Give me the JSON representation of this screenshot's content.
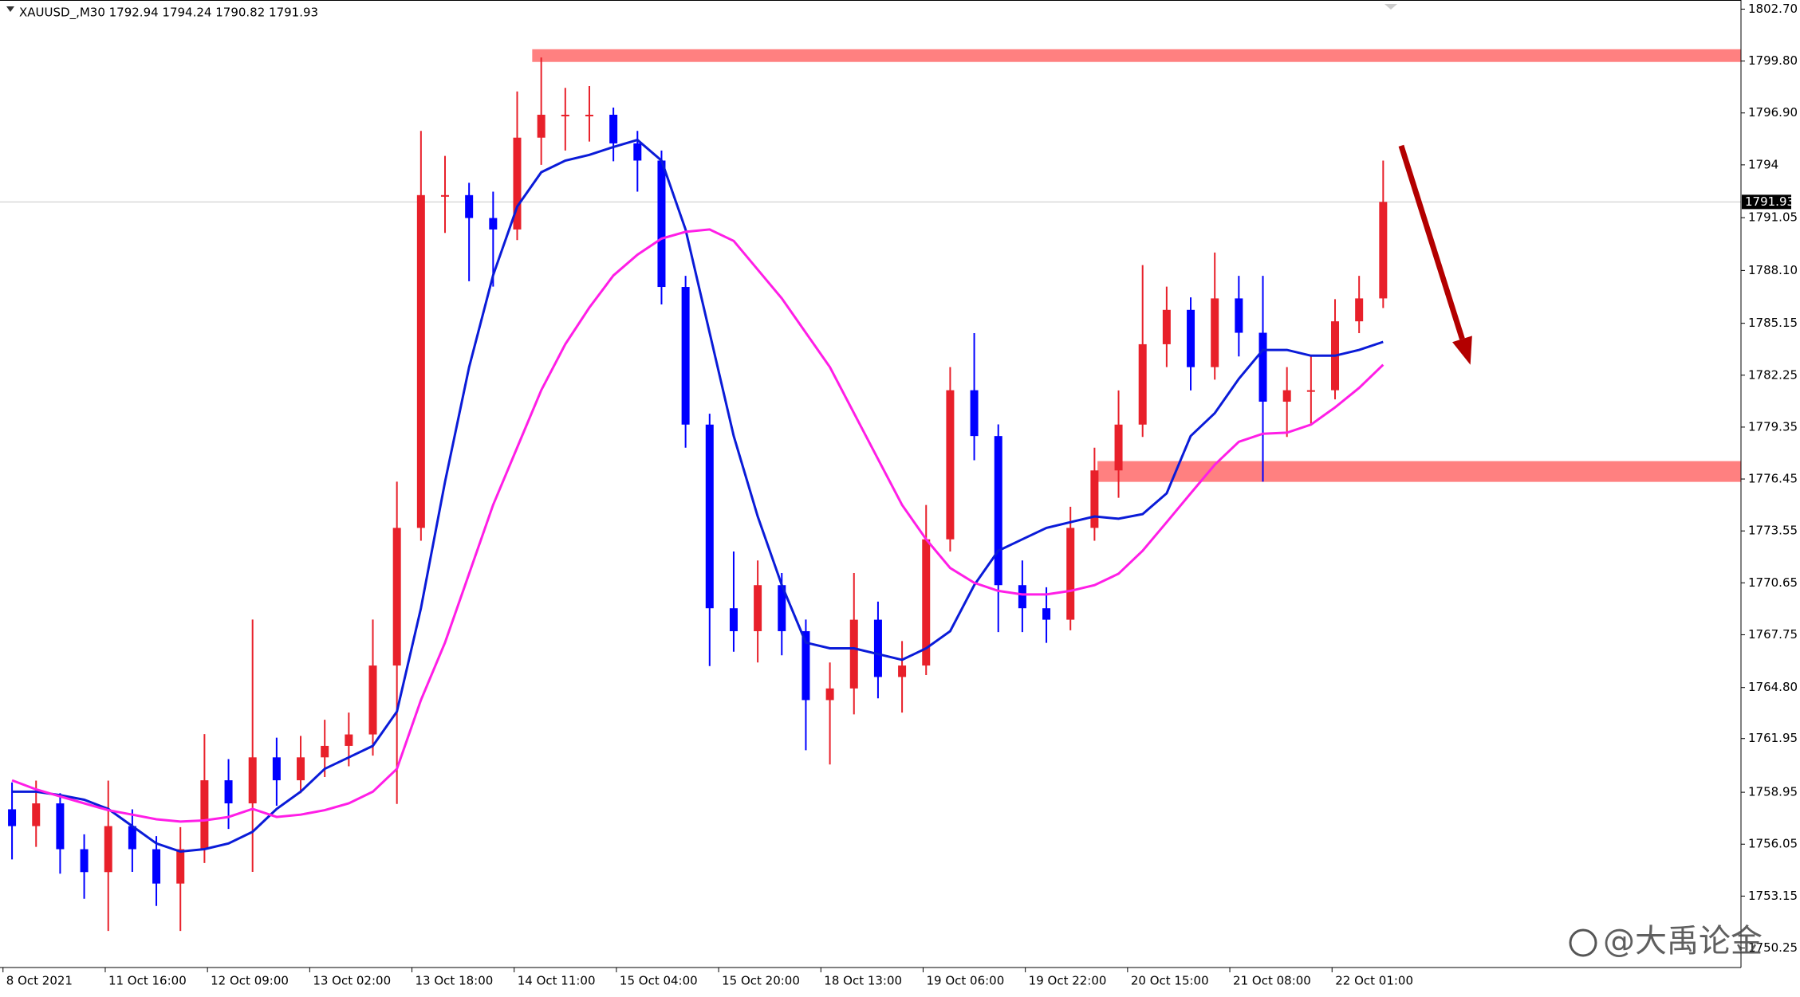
{
  "header": "XAUUSD_,M30  1792.94 1794.24 1790.82 1791.93",
  "watermark": "@大禹论金",
  "chart_data": {
    "type": "candlestick",
    "xlim": [
      0,
      579
    ],
    "ylim": [
      1749.16,
      1803.21
    ],
    "xticks": [
      {
        "value": 1,
        "label": "8 Oct 2021"
      },
      {
        "value": 35,
        "label": "11 Oct 16:00"
      },
      {
        "value": 69,
        "label": "12 Oct 09:00"
      },
      {
        "value": 103,
        "label": "13 Oct 02:00"
      },
      {
        "value": 137,
        "label": "13 Oct 18:00"
      },
      {
        "value": 171,
        "label": "14 Oct 11:00"
      },
      {
        "value": 205,
        "label": "15 Oct 04:00"
      },
      {
        "value": 239,
        "label": "15 Oct 20:00"
      },
      {
        "value": 273,
        "label": "18 Oct 13:00"
      },
      {
        "value": 307,
        "label": "19 Oct 06:00"
      },
      {
        "value": 341,
        "label": "19 Oct 22:00"
      },
      {
        "value": 375,
        "label": "20 Oct 15:00"
      },
      {
        "value": 409,
        "label": "21 Oct 08:00"
      },
      {
        "value": 443,
        "label": "22 Oct 01:00"
      }
    ],
    "yticks": [
      {
        "value": 1802.7,
        "label": "1802.70"
      },
      {
        "value": 1799.8,
        "label": "1799.80"
      },
      {
        "value": 1796.9,
        "label": "1796.90"
      },
      1794,
      {
        "value": 1791.05,
        "label": "1791.05"
      },
      {
        "value": 1788.1,
        "label": "1788.10"
      },
      {
        "value": 1785.15,
        "label": "1785.15"
      },
      1782.25,
      1779.35,
      1776.45,
      1773.55,
      1770.65,
      1767.75,
      {
        "value": 1764.8,
        "label": "1764.80"
      },
      1761.95,
      1758.95,
      1756.05,
      1753.15,
      1750.25
    ],
    "up_color": "#e8202a",
    "down_color": "#0000ff",
    "x": [
      4,
      12,
      20,
      28,
      36,
      44,
      52,
      60,
      68,
      76,
      84,
      92,
      100,
      108,
      116,
      124,
      132,
      140,
      148,
      156,
      164,
      172,
      180,
      188,
      196,
      204,
      212,
      220,
      228,
      236,
      244,
      252,
      260,
      268,
      276,
      284,
      292,
      300,
      308,
      316,
      324,
      332,
      340,
      348,
      356,
      364,
      372,
      380,
      388,
      396,
      404,
      412,
      420,
      428,
      436,
      444,
      452,
      460
    ],
    "open": [
      1758.0,
      1757.06,
      1758.33,
      1755.77,
      1754.49,
      1757.06,
      1755.77,
      1753.85,
      1755.77,
      1759.62,
      1758.33,
      1760.9,
      1759.62,
      1760.9,
      1761.54,
      1762.18,
      1766.03,
      1773.72,
      1792.31,
      1792.31,
      1791.03,
      1790.39,
      1795.52,
      1796.8,
      1796.8,
      1796.8,
      1795.2,
      1794.24,
      1787.18,
      1779.49,
      1769.23,
      1767.95,
      1770.52,
      1767.95,
      1764.1,
      1764.75,
      1768.59,
      1765.39,
      1766.03,
      1773.08,
      1781.41,
      1778.85,
      1770.52,
      1769.23,
      1768.59,
      1773.72,
      1776.93,
      1779.49,
      1783.98,
      1785.9,
      1782.7,
      1786.54,
      1784.62,
      1780.77,
      1781.41,
      1781.41,
      1785.26,
      1786.54
    ],
    "high": [
      1759.5,
      1759.6,
      1758.9,
      1756.6,
      1759.6,
      1758.0,
      1756.5,
      1757.0,
      1762.2,
      1760.8,
      1768.6,
      1762.0,
      1762.1,
      1763.0,
      1763.4,
      1768.6,
      1776.3,
      1795.9,
      1794.5,
      1793.0,
      1792.5,
      1798.1,
      1800.0,
      1798.3,
      1798.4,
      1797.2,
      1795.9,
      1794.8,
      1787.8,
      1780.1,
      1772.4,
      1771.9,
      1771.2,
      1768.6,
      1766.2,
      1771.2,
      1769.6,
      1767.4,
      1775.0,
      1782.7,
      1784.6,
      1779.5,
      1771.9,
      1770.4,
      1774.9,
      1778.2,
      1781.4,
      1788.4,
      1787.2,
      1786.6,
      1789.1,
      1787.8,
      1787.8,
      1782.7,
      1783.3,
      1786.5,
      1787.8,
      1794.24
    ],
    "low": [
      1755.2,
      1755.9,
      1754.4,
      1753.0,
      1751.2,
      1754.5,
      1752.6,
      1751.2,
      1755.0,
      1756.9,
      1754.5,
      1758.2,
      1758.9,
      1759.8,
      1760.4,
      1761.0,
      1758.3,
      1773.0,
      1790.2,
      1787.5,
      1787.2,
      1789.8,
      1794.0,
      1794.8,
      1795.3,
      1794.2,
      1792.5,
      1786.2,
      1778.2,
      1766.0,
      1766.8,
      1766.2,
      1766.6,
      1761.3,
      1760.5,
      1763.3,
      1764.2,
      1763.4,
      1765.5,
      1772.4,
      1777.5,
      1767.9,
      1767.9,
      1767.3,
      1768.0,
      1773.0,
      1775.4,
      1778.8,
      1782.7,
      1781.4,
      1782.0,
      1783.3,
      1776.3,
      1778.8,
      1779.5,
      1780.9,
      1784.6,
      1786.0
    ],
    "close": [
      1757.06,
      1758.33,
      1755.77,
      1754.49,
      1757.06,
      1755.77,
      1753.85,
      1755.77,
      1759.62,
      1758.33,
      1760.9,
      1759.62,
      1760.9,
      1761.54,
      1762.18,
      1766.03,
      1773.72,
      1792.31,
      1792.31,
      1791.03,
      1790.39,
      1795.52,
      1796.8,
      1796.8,
      1796.8,
      1795.2,
      1794.24,
      1787.18,
      1779.49,
      1769.23,
      1767.95,
      1770.52,
      1767.95,
      1764.1,
      1764.75,
      1768.59,
      1765.39,
      1766.03,
      1773.08,
      1781.41,
      1778.85,
      1770.52,
      1769.23,
      1768.59,
      1773.72,
      1776.93,
      1779.49,
      1783.98,
      1785.9,
      1782.7,
      1786.54,
      1784.62,
      1780.77,
      1781.41,
      1781.41,
      1785.26,
      1786.54,
      1791.93
    ],
    "lines": [
      {
        "color": "#0a1bd8",
        "values": [
          1758.98,
          1758.98,
          1758.79,
          1758.53,
          1758.02,
          1757.06,
          1756.09,
          1755.64,
          1755.77,
          1756.09,
          1756.74,
          1758.02,
          1758.98,
          1760.26,
          1760.9,
          1761.54,
          1763.46,
          1769.23,
          1776.29,
          1782.7,
          1787.83,
          1791.67,
          1793.59,
          1794.24,
          1794.56,
          1795.0,
          1795.39,
          1794.24,
          1790.39,
          1784.62,
          1778.85,
          1774.36,
          1770.52,
          1767.31,
          1766.99,
          1766.99,
          1766.67,
          1766.35,
          1766.99,
          1767.95,
          1770.52,
          1772.44,
          1773.08,
          1773.72,
          1774.04,
          1774.36,
          1774.23,
          1774.49,
          1775.65,
          1778.85,
          1780.13,
          1782.05,
          1783.66,
          1783.66,
          1783.34,
          1783.34,
          1783.66,
          1784.11
        ]
      },
      {
        "color": "#ff1ee6",
        "values": [
          1759.62,
          1759.11,
          1758.72,
          1758.33,
          1757.95,
          1757.7,
          1757.44,
          1757.31,
          1757.38,
          1757.57,
          1758.02,
          1757.57,
          1757.7,
          1757.95,
          1758.33,
          1758.98,
          1760.26,
          1764.1,
          1767.31,
          1771.16,
          1775.0,
          1778.21,
          1781.41,
          1783.98,
          1786.03,
          1787.82,
          1788.98,
          1789.88,
          1790.26,
          1790.39,
          1789.75,
          1788.15,
          1786.54,
          1784.62,
          1782.7,
          1780.13,
          1777.57,
          1775.0,
          1773.08,
          1771.48,
          1770.65,
          1770.2,
          1770.0,
          1770.0,
          1770.2,
          1770.52,
          1771.16,
          1772.44,
          1774.04,
          1775.65,
          1777.25,
          1778.53,
          1778.98,
          1779.04,
          1779.49,
          1780.45,
          1781.54,
          1782.83
        ]
      }
    ],
    "zones": [
      {
        "color": "#ff8080",
        "x_from": 177,
        "range": [
          1799.75,
          1800.46
        ]
      },
      {
        "color": "#ff8080",
        "x_from": 365,
        "range": [
          1776.29,
          1777.45
        ]
      }
    ],
    "arrow": {
      "color": "#b30000",
      "x": [
        466,
        489
      ],
      "y": [
        1795.07,
        1782.83
      ]
    },
    "current_price": 1791.93
  }
}
